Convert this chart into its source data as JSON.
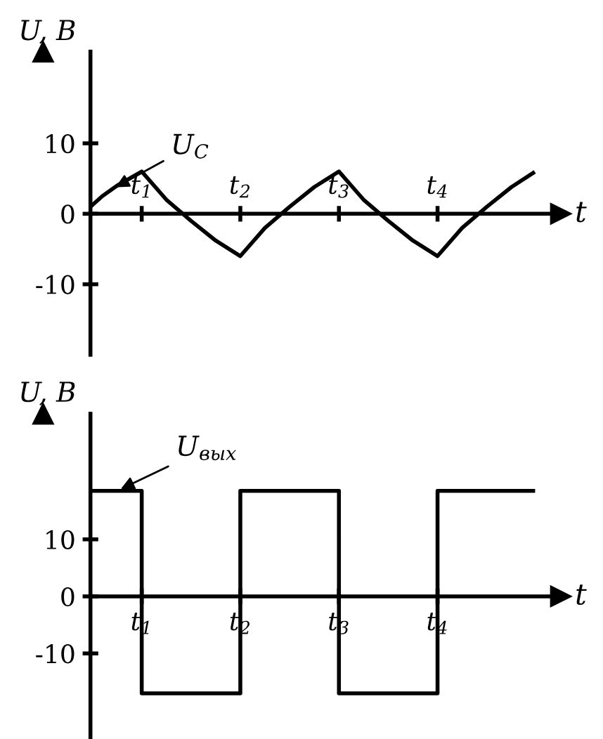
{
  "chart_data": [
    {
      "type": "line",
      "ylabel": "U, В",
      "xlabel": "t",
      "x": [
        0.48,
        0.6,
        0.75,
        1.0,
        1.25,
        1.5,
        1.75,
        2.0,
        2.25,
        2.5,
        2.75,
        3.0,
        3.25,
        3.5,
        3.75,
        4.0,
        4.25,
        4.5,
        4.75,
        4.97
      ],
      "series": [
        {
          "color": "#000000",
          "values": [
            1,
            2.5,
            4,
            6,
            2,
            -1,
            -3.8,
            -6,
            -2,
            1,
            3.8,
            6,
            2,
            -1,
            -3.8,
            -6,
            -2,
            1,
            3.8,
            5.8
          ]
        }
      ],
      "xlim": [
        0.48,
        5.25
      ],
      "ylim": [
        -20,
        23
      ],
      "xticks": [
        {
          "value": 1,
          "label": "t$_{1}$"
        },
        {
          "value": 2,
          "label": "t$_{2}$"
        },
        {
          "value": 3,
          "label": "t$_{3}$"
        },
        {
          "value": 4,
          "label": "t$_{4}$"
        }
      ],
      "yticks": [
        -10,
        0,
        10
      ],
      "annotations": [
        {
          "text": "U$_{C}$",
          "x": 0.7,
          "y": 3.5
        }
      ]
    },
    {
      "type": "line",
      "ylabel": "U, В",
      "xlabel": "t",
      "x": [
        0.48,
        1,
        1,
        2,
        2,
        3,
        3,
        4,
        4,
        4.97
      ],
      "series": [
        {
          "color": "#000000",
          "values": [
            18.5,
            18.5,
            -17,
            -17,
            18.5,
            18.5,
            -17,
            -17,
            18.5,
            18.5
          ]
        }
      ],
      "xlim": [
        0.48,
        5.25
      ],
      "ylim": [
        -25,
        32
      ],
      "xticks": [
        {
          "value": 1,
          "label": "t$_{1}$"
        },
        {
          "value": 2,
          "label": "t$_{2}$"
        },
        {
          "value": 3,
          "label": "t$_{3}$"
        },
        {
          "value": 4,
          "label": "t$_{4}$"
        }
      ],
      "yticks": [
        -10,
        0,
        10
      ],
      "annotations": [
        {
          "text": "U$_{вых}$",
          "x": 0.75,
          "y": 18.5
        }
      ]
    }
  ]
}
